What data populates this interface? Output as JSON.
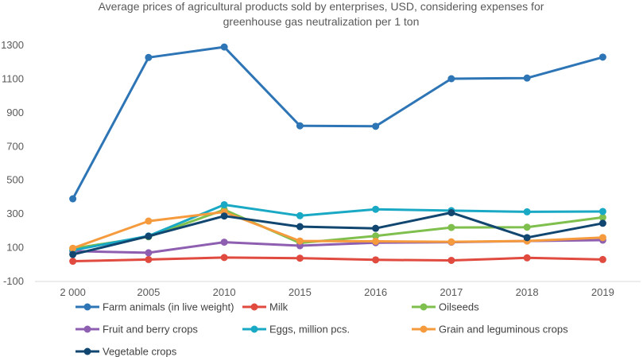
{
  "chart_data": {
    "type": "line",
    "title_lines": [
      "Average prices of agricultural products sold by enterprises, USD, considering expenses for",
      "greenhouse gas neutralization per 1 ton"
    ],
    "categories": [
      "2 000",
      "2005",
      "2010",
      "2015",
      "2016",
      "2017",
      "2018",
      "2019"
    ],
    "ylim": [
      -100,
      1300
    ],
    "yticks": [
      -100,
      100,
      300,
      500,
      700,
      900,
      1100,
      1300
    ],
    "grid": false,
    "legend_position": "bottom",
    "series": [
      {
        "name": "Farm animals (in live weight)",
        "color": "#2e75b6",
        "values": [
          390,
          1228,
          1290,
          823,
          820,
          1102,
          1106,
          1230
        ]
      },
      {
        "name": "Milk",
        "color": "#e04a3f",
        "values": [
          20,
          30,
          42,
          38,
          28,
          25,
          40,
          30
        ]
      },
      {
        "name": "Oilseeds",
        "color": "#7fbf4d",
        "values": [
          95,
          165,
          325,
          128,
          170,
          220,
          222,
          280
        ]
      },
      {
        "name": "Fruit and berry crops",
        "color": "#8e5fb0",
        "values": [
          80,
          70,
          133,
          112,
          130,
          133,
          140,
          145
        ]
      },
      {
        "name": "Eggs, million pcs.",
        "color": "#1aa9c4",
        "values": [
          85,
          170,
          355,
          290,
          328,
          320,
          313,
          315
        ]
      },
      {
        "name": "Grain and leguminous crops",
        "color": "#f59b3d",
        "values": [
          97,
          258,
          312,
          140,
          138,
          135,
          140,
          160
        ]
      },
      {
        "name": "Vegetable crops",
        "color": "#10466f",
        "values": [
          60,
          168,
          288,
          225,
          215,
          308,
          160,
          245
        ]
      }
    ]
  }
}
